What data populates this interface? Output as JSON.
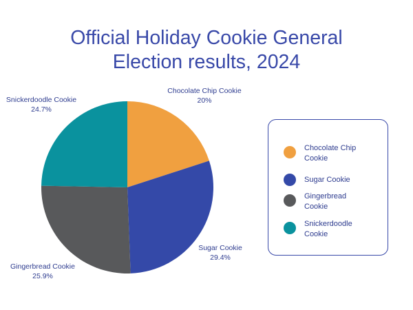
{
  "title_lines": [
    "Official Holiday Cookie General",
    "Election results, 2024"
  ],
  "chart_data": {
    "type": "pie",
    "title": "Official Holiday Cookie General Election results, 2024",
    "slices": [
      {
        "name": "Chocolate Chip Cookie",
        "value": 20,
        "label": "20%",
        "color": "#F0A040",
        "legend_lines": [
          "Chocolate Chip",
          "Cookie"
        ]
      },
      {
        "name": "Sugar Cookie",
        "value": 29.4,
        "label": "29.4%",
        "color": "#3449A8",
        "legend_lines": [
          "Sugar Cookie"
        ]
      },
      {
        "name": "Gingerbread Cookie",
        "value": 25.9,
        "label": "25.9%",
        "color": "#58595B",
        "legend_lines": [
          "Gingerbread",
          "Cookie"
        ]
      },
      {
        "name": "Snickerdoodle Cookie",
        "value": 24.7,
        "label": "24.7%",
        "color": "#0A929E",
        "legend_lines": [
          "Snickerdoodle",
          "Cookie"
        ]
      }
    ],
    "start_angle": "12 o'clock",
    "direction": "clockwise",
    "legend_position": "right"
  }
}
